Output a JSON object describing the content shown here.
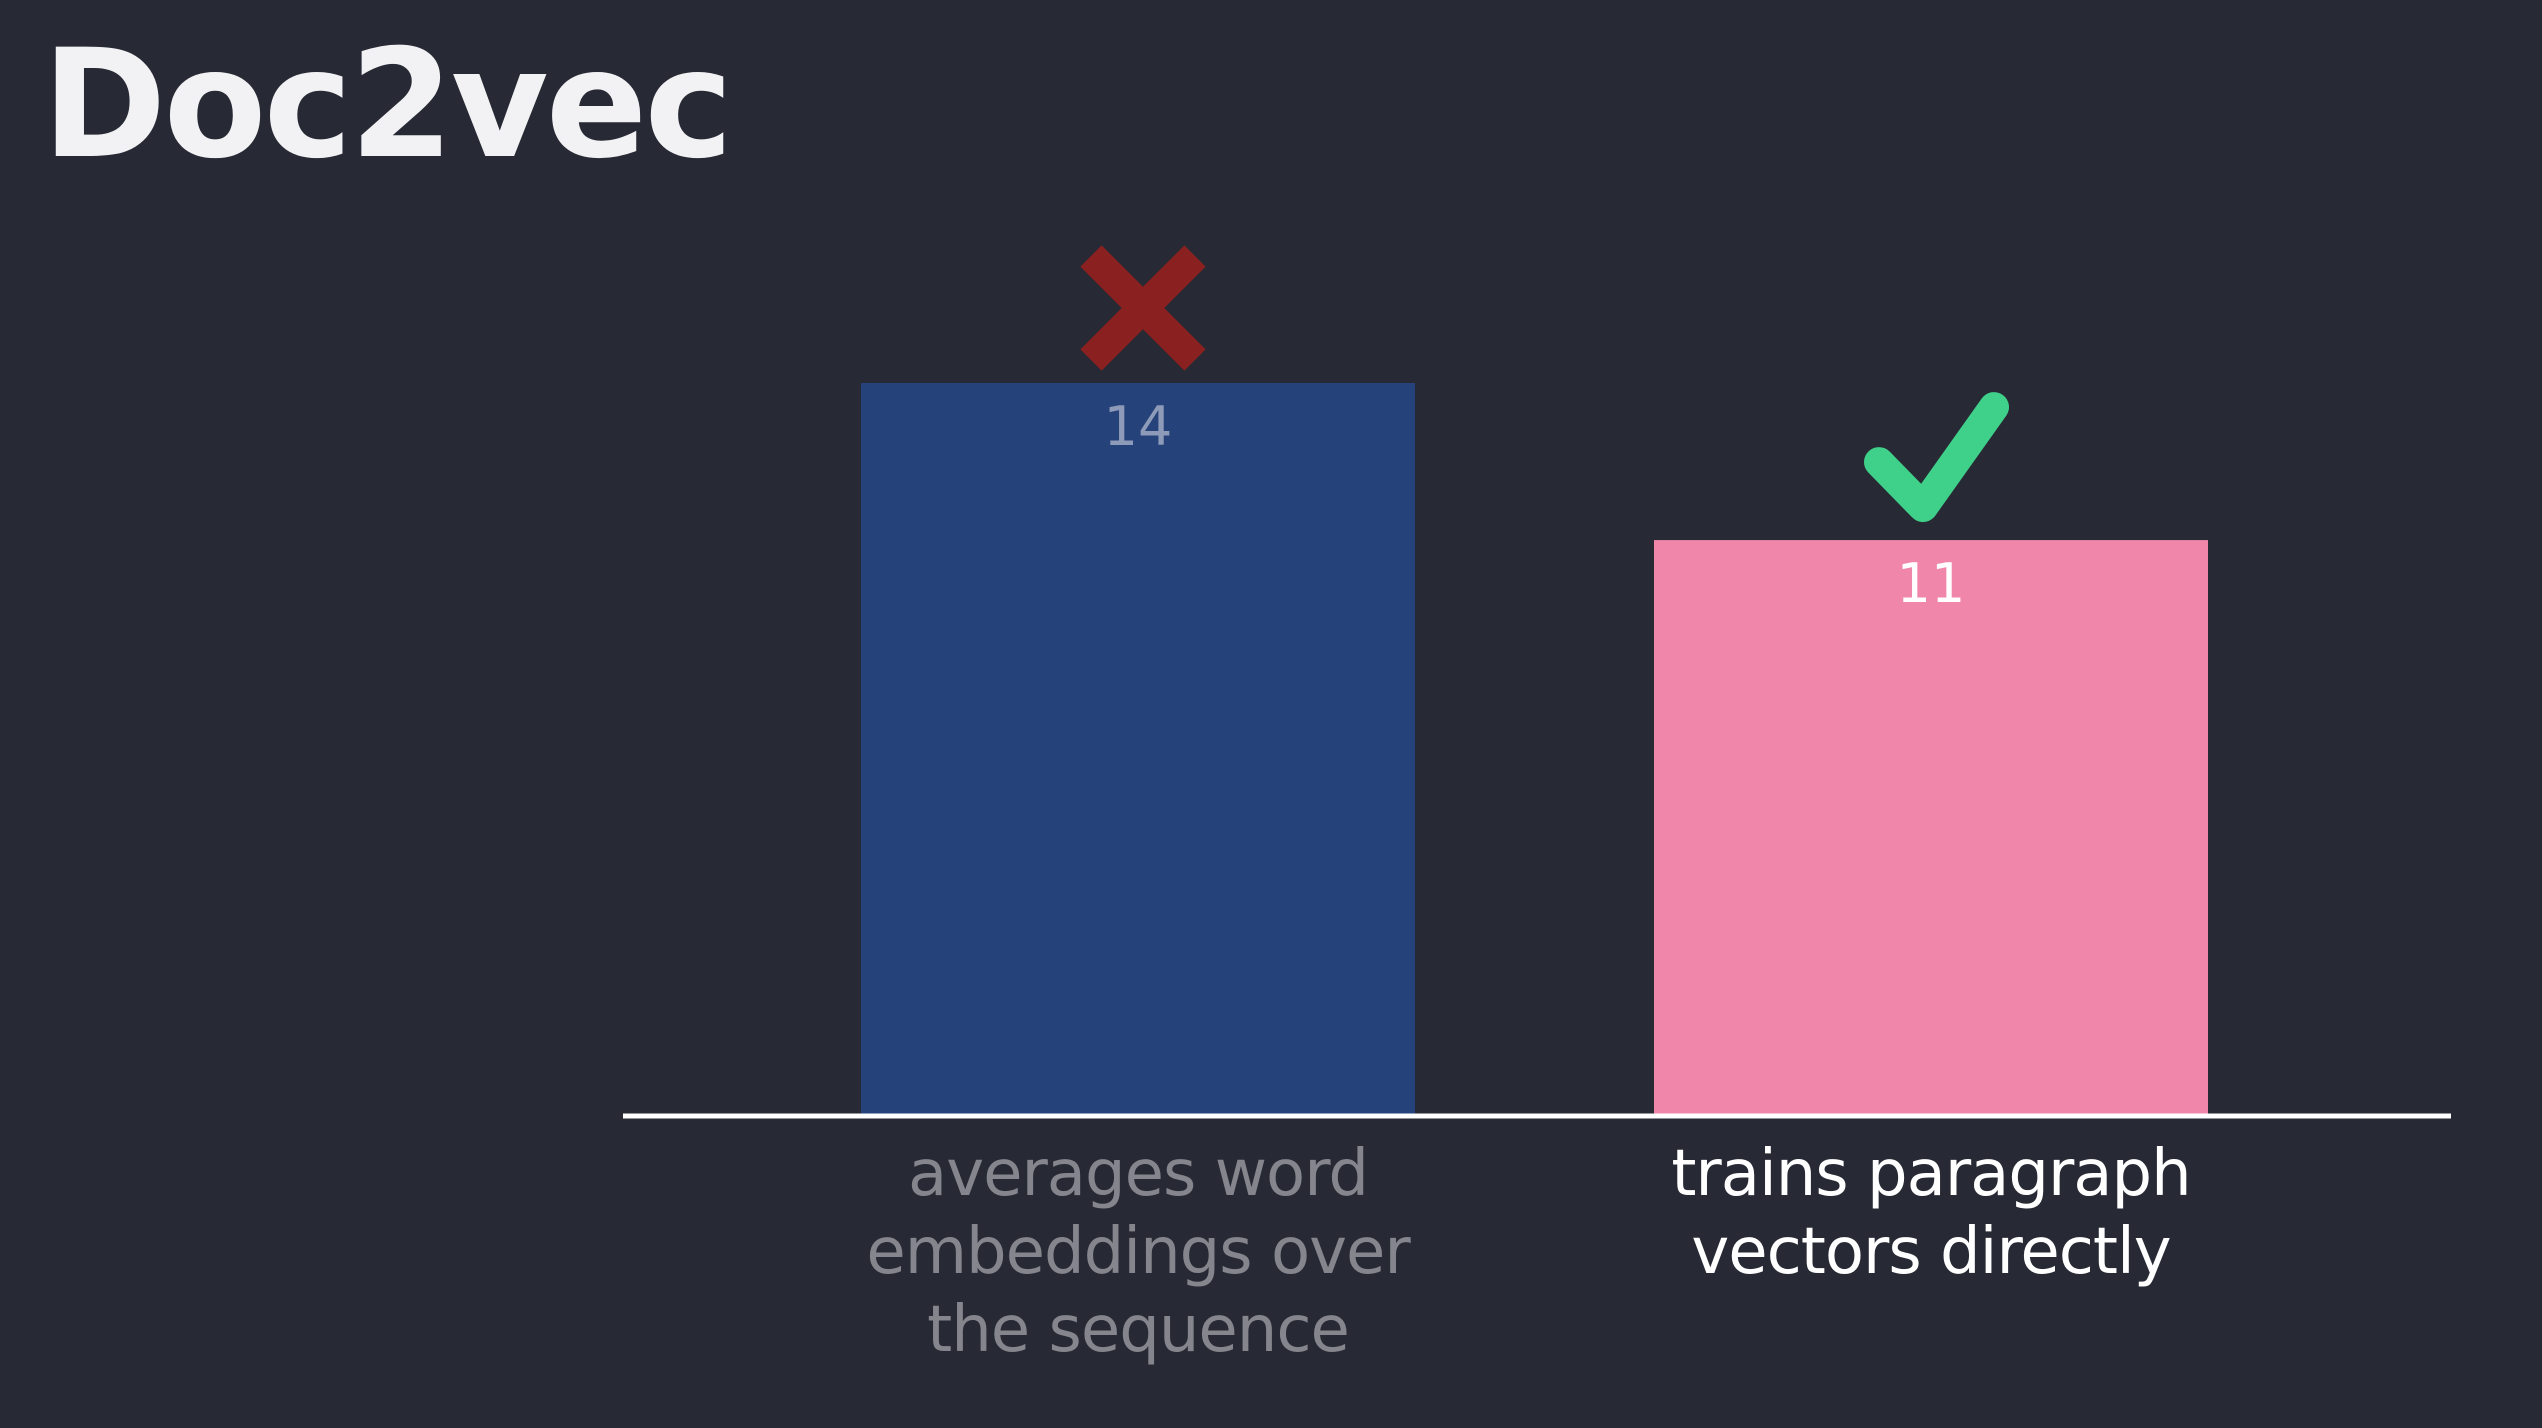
{
  "slide": {
    "title": "Doc2vec"
  },
  "chart_data": {
    "type": "bar",
    "title": "",
    "xlabel": "",
    "ylabel": "",
    "ylim": [
      0,
      14
    ],
    "grid": false,
    "categories": [
      "averages word embeddings over the sequence",
      "trains paragraph vectors directly"
    ],
    "values": [
      14,
      11
    ],
    "bar_colors": [
      "#26427a",
      "#f087aa"
    ],
    "value_label_colors": [
      "#8d9ab8",
      "#ffffff"
    ],
    "category_label_colors": [
      "#85868d",
      "#ffffff"
    ],
    "markers": [
      {
        "category": "averages word embeddings over the sequence",
        "icon": "cross-icon",
        "color": "#8b2020"
      },
      {
        "category": "trains paragraph vectors directly",
        "icon": "check-icon",
        "color": "#3fd08a"
      }
    ],
    "axis_color": "#ffffff"
  }
}
